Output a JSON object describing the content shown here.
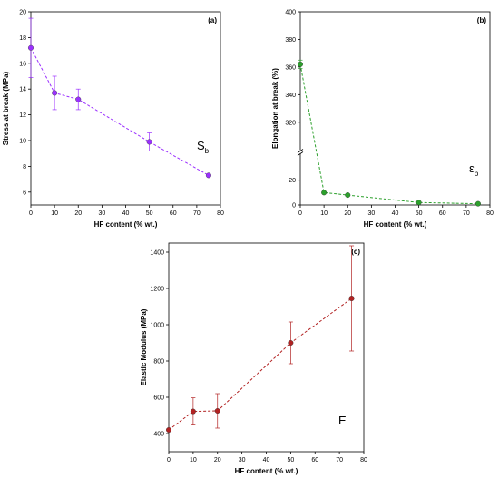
{
  "chart_data": [
    {
      "type": "line",
      "panel_label": "(a)",
      "annotation": "S",
      "annotation_sub": "b",
      "xlabel": "HF content (% wt.)",
      "ylabel": "Stress at break (MPa)",
      "xlim": [
        0,
        80
      ],
      "ylim": [
        5,
        20
      ],
      "x_ticks": [
        0,
        10,
        20,
        30,
        40,
        50,
        60,
        70,
        80
      ],
      "y_ticks": [
        6,
        8,
        10,
        12,
        14,
        16,
        18,
        20
      ],
      "x": [
        0,
        10,
        20,
        50,
        75
      ],
      "y": [
        17.2,
        13.7,
        13.2,
        9.9,
        7.3
      ],
      "err": [
        2.3,
        1.3,
        0.8,
        0.7,
        0.1
      ],
      "color": "#9b30ff",
      "grid": false
    },
    {
      "type": "line",
      "panel_label": "(b)",
      "annotation": "ε",
      "annotation_sub": "b",
      "xlabel": "HF content (% wt.)",
      "ylabel": "Elongation at break (%)",
      "xlim": [
        0,
        80
      ],
      "axis_break": true,
      "ylim_lower": [
        0,
        30
      ],
      "ylim_upper": [
        310,
        400
      ],
      "y_ticks_lower": [
        0,
        20
      ],
      "y_ticks_upper": [
        320,
        340,
        360,
        380,
        400
      ],
      "x_ticks": [
        0,
        10,
        20,
        30,
        40,
        50,
        60,
        70,
        80
      ],
      "x": [
        0,
        10,
        20,
        50,
        75
      ],
      "y": [
        362,
        10,
        8,
        2,
        1
      ],
      "err": [
        3,
        0,
        0,
        0,
        0
      ],
      "color": "#2ca02c",
      "grid": false
    },
    {
      "type": "line",
      "panel_label": "(c)",
      "annotation": "E",
      "xlabel": "HF content (% wt.)",
      "ylabel": "Elastic Modulus (MPa)",
      "xlim": [
        0,
        80
      ],
      "ylim": [
        300,
        1450
      ],
      "x_ticks": [
        0,
        10,
        20,
        30,
        40,
        50,
        60,
        70,
        80
      ],
      "y_ticks": [
        400,
        600,
        800,
        1000,
        1200,
        1400
      ],
      "x": [
        0,
        10,
        20,
        50,
        75
      ],
      "y": [
        420,
        522,
        525,
        900,
        1145
      ],
      "err": [
        0,
        75,
        95,
        115,
        290
      ],
      "color": "#b22222",
      "grid": false
    }
  ]
}
